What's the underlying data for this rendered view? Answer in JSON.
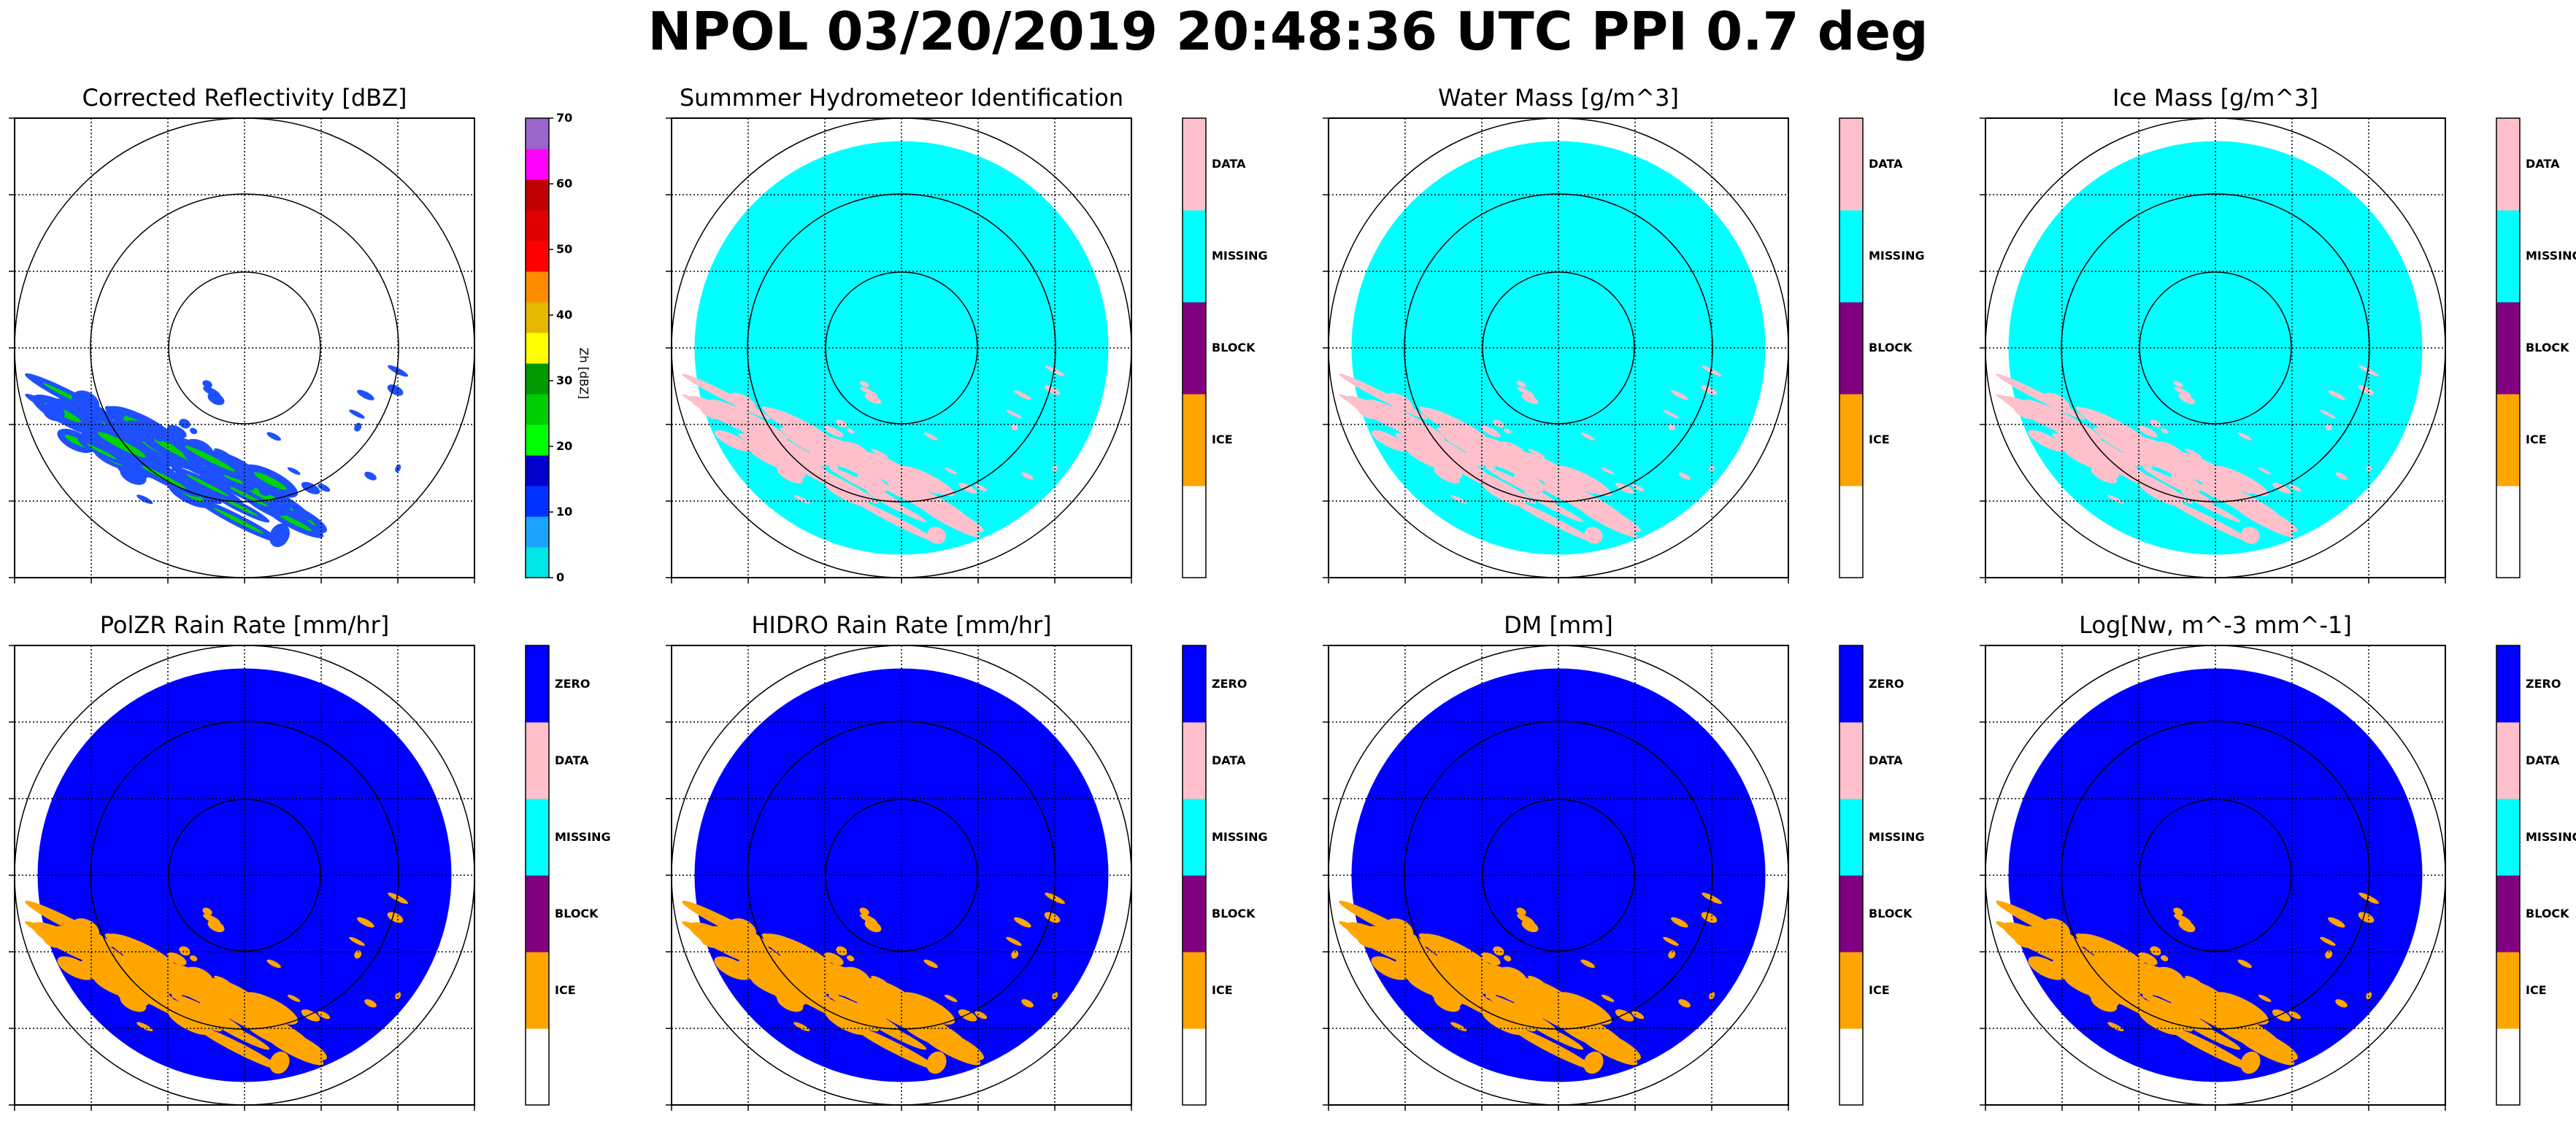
{
  "figure": {
    "title": "NPOL 03/20/2019 20:48:36 UTC PPI 0.7 deg"
  },
  "chart_data": [
    {
      "type": "heatmap",
      "title": "Corrected Reflectivity [dBZ]",
      "colorbar": {
        "kind": "continuous",
        "label": "Zh [dBZ]",
        "ticks": [
          "0",
          "10",
          "20",
          "30",
          "40",
          "50",
          "60",
          "70"
        ],
        "range": [
          0,
          70
        ],
        "colors": [
          "#00e5e5",
          "#1aa3ff",
          "#0033ff",
          "#0000cc",
          "#00ff00",
          "#00cc00",
          "#009900",
          "#ffff00",
          "#e6b800",
          "#ff8c00",
          "#ff0000",
          "#e00000",
          "#c00000",
          "#ff00ff",
          "#9966cc"
        ]
      },
      "field": "echoes",
      "colors": {
        "echo_outer": "#1e50ff",
        "echo_inner": "#00d400",
        "echo_core": "#ffff66"
      }
    },
    {
      "type": "heatmap",
      "title": "Summmer Hydrometeor Identification",
      "colorbar": {
        "kind": "categorical",
        "labels": [
          "ICE",
          "BLOCK",
          "MISSING",
          "DATA"
        ],
        "colors": [
          "#ffffff",
          "#ffa500",
          "#800080",
          "#00ffff",
          "#ffc0cb"
        ]
      },
      "field": "disk",
      "colors": {
        "background": "#00ffff",
        "echo": "#ffc0cb"
      }
    },
    {
      "type": "heatmap",
      "title": "Water Mass [g/m^3]",
      "colorbar": {
        "kind": "categorical",
        "labels": [
          "ICE",
          "BLOCK",
          "MISSING",
          "DATA"
        ],
        "colors": [
          "#ffffff",
          "#ffa500",
          "#800080",
          "#00ffff",
          "#ffc0cb"
        ]
      },
      "field": "disk",
      "colors": {
        "background": "#00ffff",
        "echo": "#ffc0cb"
      }
    },
    {
      "type": "heatmap",
      "title": "Ice Mass [g/m^3]",
      "colorbar": {
        "kind": "categorical",
        "labels": [
          "ICE",
          "BLOCK",
          "MISSING",
          "DATA"
        ],
        "colors": [
          "#ffffff",
          "#ffa500",
          "#800080",
          "#00ffff",
          "#ffc0cb"
        ]
      },
      "field": "disk",
      "colors": {
        "background": "#00ffff",
        "echo": "#ffc0cb"
      }
    },
    {
      "type": "heatmap",
      "title": "PolZR Rain Rate [mm/hr]",
      "colorbar": {
        "kind": "categorical",
        "labels": [
          "ICE",
          "BLOCK",
          "MISSING",
          "DATA",
          "ZERO"
        ],
        "colors": [
          "#ffffff",
          "#ffa500",
          "#800080",
          "#00ffff",
          "#ffc0cb",
          "#0000ff"
        ]
      },
      "field": "disk",
      "colors": {
        "background": "#0000ff",
        "echo": "#ffa500"
      }
    },
    {
      "type": "heatmap",
      "title": "HIDRO Rain Rate [mm/hr]",
      "colorbar": {
        "kind": "categorical",
        "labels": [
          "ICE",
          "BLOCK",
          "MISSING",
          "DATA",
          "ZERO"
        ],
        "colors": [
          "#ffffff",
          "#ffa500",
          "#800080",
          "#00ffff",
          "#ffc0cb",
          "#0000ff"
        ]
      },
      "field": "disk",
      "colors": {
        "background": "#0000ff",
        "echo": "#ffa500"
      }
    },
    {
      "type": "heatmap",
      "title": "DM [mm]",
      "colorbar": {
        "kind": "categorical",
        "labels": [
          "ICE",
          "BLOCK",
          "MISSING",
          "DATA",
          "ZERO"
        ],
        "colors": [
          "#ffffff",
          "#ffa500",
          "#800080",
          "#00ffff",
          "#ffc0cb",
          "#0000ff"
        ]
      },
      "field": "disk",
      "colors": {
        "background": "#0000ff",
        "echo": "#ffa500"
      }
    },
    {
      "type": "heatmap",
      "title": "Log[Nw, m^-3 mm^-1]",
      "colorbar": {
        "kind": "categorical",
        "labels": [
          "ICE",
          "BLOCK",
          "MISSING",
          "DATA",
          "ZERO"
        ],
        "colors": [
          "#ffffff",
          "#ffa500",
          "#800080",
          "#00ffff",
          "#ffc0cb",
          "#0000ff"
        ]
      },
      "field": "disk",
      "colors": {
        "background": "#0000ff",
        "echo": "#ffa500"
      }
    }
  ]
}
